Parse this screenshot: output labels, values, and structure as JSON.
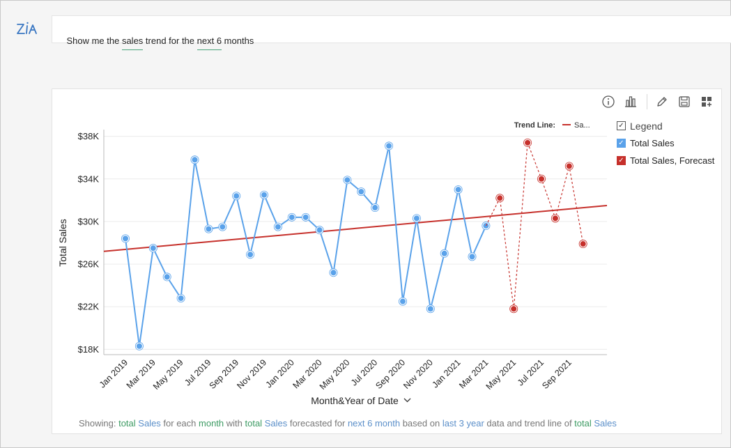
{
  "query": {
    "parts": [
      {
        "text": "Show me the ",
        "hl": false
      },
      {
        "text": "sales",
        "hl": true
      },
      {
        "text": " trend for the ",
        "hl": false
      },
      {
        "text": "next 6",
        "hl": true
      },
      {
        "text": " months",
        "hl": false
      }
    ]
  },
  "colors": {
    "actual": "#5aa2ea",
    "forecast": "#c6302b",
    "trend": "#c6302b",
    "grid": "#ececec"
  },
  "legend": {
    "title": "Legend",
    "items": [
      {
        "label": "Total Sales",
        "color": "#5aa2ea"
      },
      {
        "label": "Total Sales, Forecast",
        "color": "#c6302b"
      }
    ]
  },
  "trend_legend": {
    "label": "Trend Line:",
    "series": "Sa..."
  },
  "toolbar": {
    "icons": [
      "info-icon",
      "bar-chart-icon",
      "edit-icon",
      "save-icon",
      "dashboard-icon"
    ]
  },
  "chart_data": {
    "type": "line",
    "xlabel": "Month&Year of Date",
    "ylabel": "Total Sales",
    "ylim": [
      17500,
      38500
    ],
    "yticks": [
      {
        "value": 18000,
        "label": "$18K"
      },
      {
        "value": 22000,
        "label": "$22K"
      },
      {
        "value": 26000,
        "label": "$26K"
      },
      {
        "value": 30000,
        "label": "$30K"
      },
      {
        "value": 34000,
        "label": "$34K"
      },
      {
        "value": 38000,
        "label": "$38K"
      }
    ],
    "xtick_labels": [
      {
        "index": 0,
        "label": "Jan 2019"
      },
      {
        "index": 2,
        "label": "Mar 2019"
      },
      {
        "index": 4,
        "label": "May 2019"
      },
      {
        "index": 6,
        "label": "Jul 2019"
      },
      {
        "index": 8,
        "label": "Sep 2019"
      },
      {
        "index": 10,
        "label": "Nov 2019"
      },
      {
        "index": 12,
        "label": "Jan 2020"
      },
      {
        "index": 14,
        "label": "Mar 2020"
      },
      {
        "index": 16,
        "label": "May 2020"
      },
      {
        "index": 18,
        "label": "Jul 2020"
      },
      {
        "index": 20,
        "label": "Sep 2020"
      },
      {
        "index": 22,
        "label": "Nov 2020"
      },
      {
        "index": 24,
        "label": "Jan 2021"
      },
      {
        "index": 26,
        "label": "Mar 2021"
      },
      {
        "index": 28,
        "label": "May 2021"
      },
      {
        "index": 30,
        "label": "Jul 2021"
      },
      {
        "index": 32,
        "label": "Sep 2021"
      }
    ],
    "series": [
      {
        "name": "Total Sales",
        "start_index": 0,
        "values": [
          28400,
          18300,
          27500,
          24800,
          22800,
          35800,
          29300,
          29500,
          32400,
          26900,
          32500,
          29500,
          30400,
          30400,
          29200,
          25200,
          33900,
          32800,
          31300,
          37100,
          22500,
          30300,
          21800,
          27000,
          33000,
          26700,
          29600
        ]
      },
      {
        "name": "Total Sales, Forecast",
        "start_index": 26,
        "values": [
          29600,
          32200,
          21800,
          37400,
          34000,
          30300,
          35200,
          27900
        ]
      }
    ],
    "trend_line": {
      "name": "Sa...",
      "start_value": 27200,
      "end_value": 31500
    },
    "legend_position": "right",
    "grid": true
  },
  "footer": {
    "parts": [
      {
        "text": "Showing: ",
        "c": ""
      },
      {
        "text": "total ",
        "c": "g"
      },
      {
        "text": "Sales",
        "c": "b"
      },
      {
        "text": " for each ",
        "c": ""
      },
      {
        "text": "month",
        "c": "g"
      },
      {
        "text": " with ",
        "c": ""
      },
      {
        "text": "total ",
        "c": "g"
      },
      {
        "text": "Sales",
        "c": "b"
      },
      {
        "text": " forecasted for ",
        "c": ""
      },
      {
        "text": "next 6 month",
        "c": "b"
      },
      {
        "text": " based on ",
        "c": ""
      },
      {
        "text": "last 3 year",
        "c": "b"
      },
      {
        "text": " data and trend line of ",
        "c": ""
      },
      {
        "text": "total ",
        "c": "g"
      },
      {
        "text": "Sales",
        "c": "b"
      }
    ]
  }
}
